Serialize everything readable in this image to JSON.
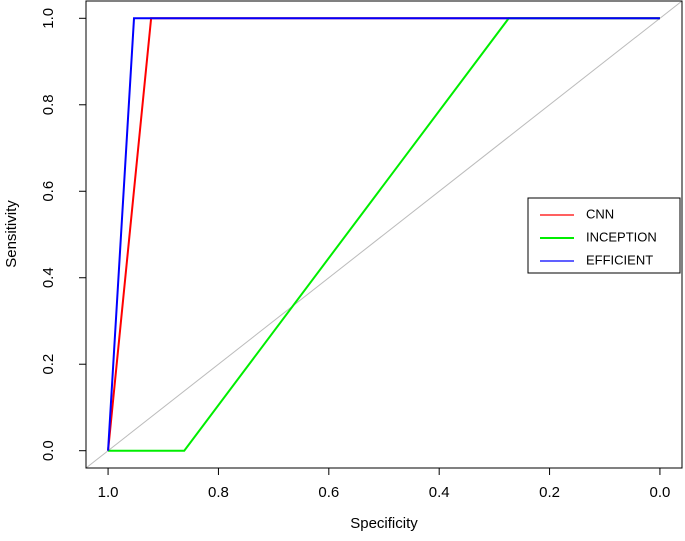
{
  "chart_data": {
    "type": "line",
    "xlabel": "Specificity",
    "ylabel": "Sensitivity",
    "xlim": [
      1.04,
      -0.04
    ],
    "ylim": [
      -0.04,
      1.04
    ],
    "xticks": [
      {
        "value": 1,
        "label": "1.0"
      },
      0.8,
      0.6,
      0.4,
      0.2,
      {
        "value": 0,
        "label": "0.0"
      }
    ],
    "yticks": [
      {
        "value": 0,
        "label": "0.0"
      },
      0.2,
      0.4,
      0.6,
      0.8,
      {
        "value": 1,
        "label": "1.0"
      }
    ],
    "legend": "right",
    "series": [
      {
        "name": "CNN",
        "color": "#ff0000",
        "x": [
          1,
          0.922,
          0
        ],
        "values": [
          0,
          1,
          1
        ]
      },
      {
        "name": "INCEPTION",
        "color": "#00ee00",
        "x": [
          1,
          0.862,
          0.274,
          0
        ],
        "values": [
          0,
          0,
          1,
          1
        ]
      },
      {
        "name": "EFFICIENT",
        "color": "#0000ff",
        "x": [
          1,
          0.953,
          0
        ],
        "values": [
          0,
          1,
          1
        ]
      }
    ]
  }
}
